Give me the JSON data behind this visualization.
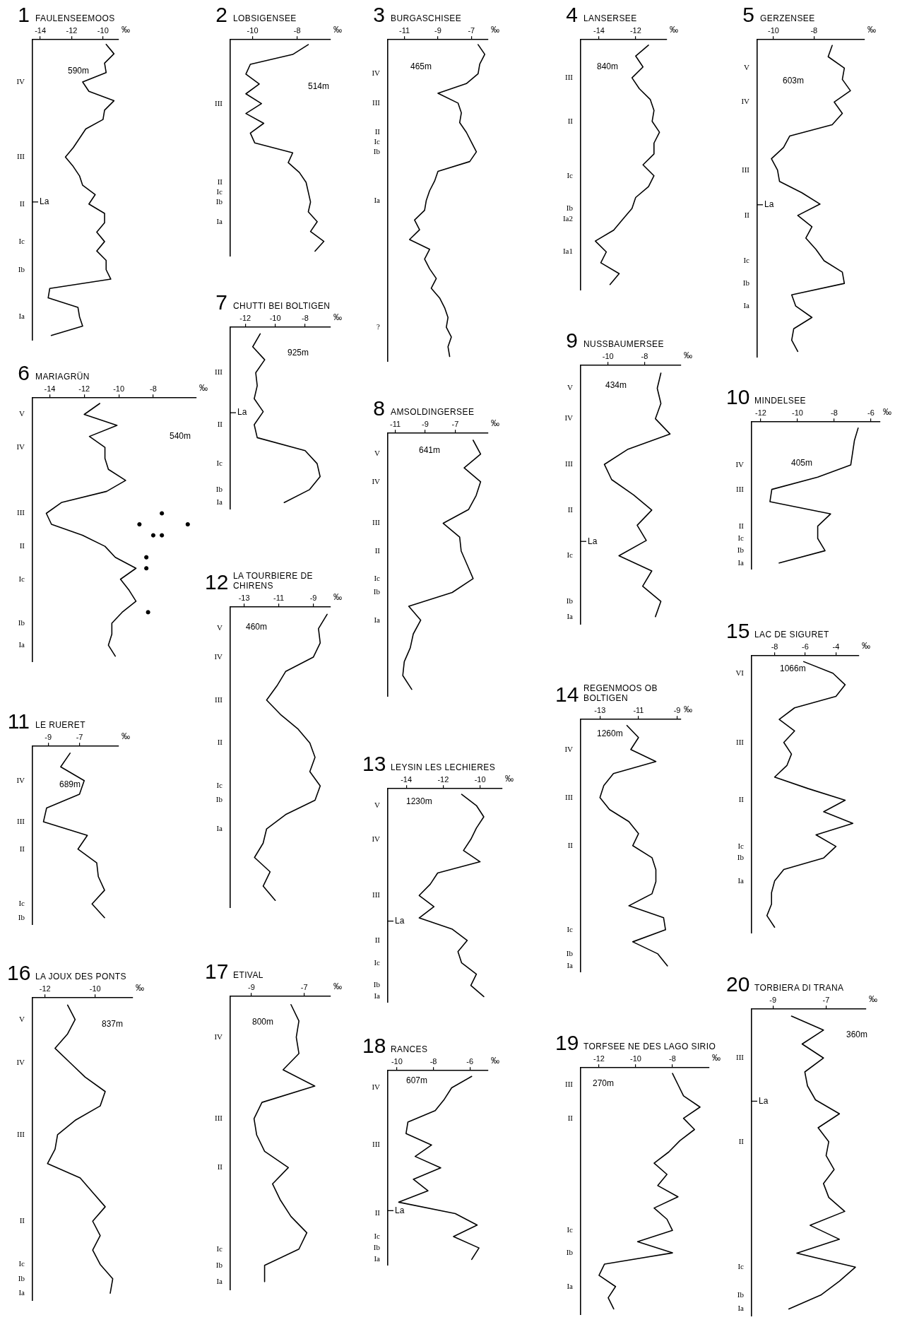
{
  "chart_data": [
    {
      "type": "line",
      "orientation": "horizontal",
      "title": "FAULENSEEMOOS",
      "xlabel": "‰",
      "xlim": [
        -14.5,
        -9
      ],
      "xticks": [
        -14,
        -12,
        -10
      ],
      "annotations": [
        "1",
        "590m",
        "La"
      ],
      "categories": [
        null,
        null,
        null,
        null,
        "IV",
        null,
        null,
        null,
        null,
        null,
        null,
        null,
        "III",
        null,
        null,
        null,
        null,
        "II",
        null,
        null,
        null,
        "Ic",
        null,
        null,
        "Ib",
        null,
        null,
        null,
        null,
        "Ia",
        null,
        null
      ],
      "series": [
        {
          "color": "#000000",
          "values": [
            -9.8,
            -9.3,
            -9.9,
            -9.8,
            -11.3,
            -10.9,
            -9.3,
            -9.9,
            -10.0,
            -11.1,
            -11.5,
            -11.9,
            -12.4,
            -11.9,
            -11.5,
            -11.3,
            -10.5,
            -10.9,
            -9.9,
            -9.9,
            -10.4,
            -9.9,
            -10.4,
            -9.8,
            -9.8,
            -9.5,
            -13.4,
            -13.5,
            -11.6,
            -11.5,
            -11.3,
            -13.3
          ]
        }
      ]
    },
    {
      "type": "line",
      "orientation": "horizontal",
      "title": "LOBSIGENSEE",
      "xlabel": "‰",
      "xlim": [
        -11,
        -6.5
      ],
      "xticks": [
        -10,
        -8
      ],
      "annotations": [
        "2",
        "514m"
      ],
      "categories": [
        null,
        null,
        null,
        null,
        null,
        null,
        "III",
        null,
        null,
        null,
        null,
        null,
        null,
        null,
        "II",
        "Ic",
        "Ib",
        null,
        "Ia",
        null,
        null,
        null
      ],
      "series": [
        {
          "color": "#000000",
          "values": [
            -7.5,
            -8.2,
            -10.1,
            -10.3,
            -9.7,
            -10.3,
            -9.6,
            -10.3,
            -9.5,
            -10.1,
            -9.9,
            -8.2,
            -8.4,
            -7.9,
            -7.6,
            -7.5,
            -7.4,
            -7.5,
            -7.1,
            -7.4,
            -6.8,
            -7.2
          ]
        }
      ]
    },
    {
      "type": "line",
      "orientation": "horizontal",
      "title": "BURGASCHISEE",
      "xlabel": "‰",
      "xlim": [
        -12,
        -6
      ],
      "xticks": [
        -11,
        -9,
        -7
      ],
      "annotations": [
        "3",
        "465m"
      ],
      "categories": [
        null,
        null,
        null,
        "IV",
        null,
        null,
        "III",
        null,
        null,
        "II",
        "Ic",
        "Ib",
        null,
        null,
        null,
        null,
        "Ia",
        null,
        null,
        null,
        null,
        null,
        null,
        null,
        null,
        null,
        null,
        null,
        null,
        "?",
        null,
        null,
        null
      ],
      "series": [
        {
          "color": "#000000",
          "values": [
            -6.6,
            -6.2,
            -6.5,
            -6.6,
            -7.3,
            -9.0,
            -7.8,
            -7.6,
            -7.7,
            -7.3,
            -7.0,
            -6.7,
            -7.1,
            -9.0,
            -9.2,
            -9.5,
            -9.7,
            -9.8,
            -10.4,
            -10.1,
            -10.7,
            -9.5,
            -9.8,
            -9.5,
            -9.1,
            -9.4,
            -8.9,
            -8.6,
            -8.4,
            -8.5,
            -8.2,
            -8.4,
            -8.3
          ]
        }
      ]
    },
    {
      "type": "line",
      "orientation": "horizontal",
      "title": "LANSERSEE",
      "xlabel": "‰",
      "xlim": [
        -15,
        -10.3
      ],
      "xticks": [
        -14,
        -12
      ],
      "annotations": [
        "4",
        "840m"
      ],
      "categories": [
        null,
        null,
        null,
        "III",
        null,
        null,
        null,
        "II",
        null,
        null,
        null,
        null,
        "Ic",
        null,
        null,
        "Ib",
        "Ia2",
        null,
        null,
        "Ia1",
        null,
        null,
        null
      ],
      "series": [
        {
          "color": "#000000",
          "values": [
            -11.3,
            -12.0,
            -11.6,
            -12.2,
            -11.8,
            -11.2,
            -11.0,
            -11.1,
            -10.7,
            -11.0,
            -11.0,
            -11.6,
            -11.0,
            -11.3,
            -12.0,
            -12.2,
            -12.7,
            -13.2,
            -14.2,
            -13.6,
            -13.9,
            -12.9,
            -13.4
          ]
        }
      ]
    },
    {
      "type": "line",
      "orientation": "horizontal",
      "title": "GERZENSEE",
      "xlabel": "‰",
      "xlim": [
        -10.8,
        -5.5
      ],
      "xticks": [
        -10,
        -8
      ],
      "annotations": [
        "5",
        "603m",
        "La"
      ],
      "categories": [
        null,
        null,
        "V",
        null,
        null,
        "IV",
        null,
        null,
        null,
        null,
        null,
        "III",
        null,
        null,
        null,
        "II",
        null,
        null,
        null,
        "Ic",
        null,
        "Ib",
        null,
        "Ia",
        null,
        null,
        null,
        null
      ],
      "series": [
        {
          "color": "#000000",
          "values": [
            -7.1,
            -7.3,
            -6.5,
            -6.6,
            -6.2,
            -7.0,
            -6.6,
            -7.1,
            -9.2,
            -9.5,
            -10.1,
            -9.8,
            -9.7,
            -8.6,
            -7.7,
            -8.8,
            -8.1,
            -8.4,
            -7.9,
            -7.5,
            -6.6,
            -6.5,
            -9.1,
            -8.9,
            -8.1,
            -9.0,
            -9.1,
            -8.8
          ]
        }
      ]
    },
    {
      "type": "line",
      "orientation": "horizontal",
      "title": "MARIAGRÜN",
      "xlabel": "‰",
      "xlim": [
        -15,
        -5.5
      ],
      "xticks": [
        -14,
        -12,
        -10,
        -8
      ],
      "annotations": [
        "6",
        "540m"
      ],
      "categories": [
        null,
        "V",
        null,
        null,
        "IV",
        null,
        null,
        null,
        null,
        null,
        "III",
        null,
        null,
        "II",
        null,
        null,
        "Ic",
        null,
        null,
        null,
        "Ib",
        null,
        "Ia",
        null
      ],
      "series": [
        {
          "color": "#000000",
          "values": [
            -11.1,
            -12.0,
            -10.1,
            -11.7,
            -10.8,
            -10.8,
            -10.6,
            -9.6,
            -10.7,
            -13.3,
            -14.2,
            -13.9,
            -12.1,
            -10.8,
            -10.2,
            -9.0,
            -9.9,
            -9.4,
            -9.0,
            -9.8,
            -10.4,
            -10.4,
            -10.6,
            -10.2
          ]
        },
        {
          "type": "scatter",
          "color": "#000000",
          "values": [
            null,
            null,
            null,
            null,
            null,
            null,
            null,
            null,
            null,
            null,
            -7.5,
            -8.8,
            -8.0,
            null,
            null,
            -8.4,
            null,
            null,
            null,
            -8.3,
            null,
            null,
            null,
            null
          ]
        },
        {
          "type": "scatter",
          "color": "#000000",
          "values": [
            null,
            null,
            null,
            null,
            null,
            null,
            null,
            null,
            null,
            null,
            null,
            -6.0,
            -7.5,
            null,
            -8.4,
            null,
            null,
            null,
            null,
            null,
            null,
            null,
            null,
            null
          ]
        }
      ]
    },
    {
      "type": "line",
      "orientation": "horizontal",
      "title": "CHUTTI BEI BOLTIGEN",
      "xlabel": "‰",
      "xlim": [
        -13,
        -6.3
      ],
      "xticks": [
        -12,
        -10,
        -8
      ],
      "annotations": [
        "7",
        "925m",
        "La"
      ],
      "categories": [
        null,
        null,
        null,
        "III",
        null,
        null,
        null,
        "II",
        null,
        null,
        "Ic",
        null,
        "Ib",
        "Ia"
      ],
      "series": [
        {
          "color": "#000000",
          "values": [
            -11.0,
            -11.5,
            -10.7,
            -11.3,
            -11.2,
            -11.4,
            -10.8,
            -11.4,
            -11.2,
            -8.0,
            -7.2,
            -7.0,
            -7.7,
            -9.4
          ]
        }
      ]
    },
    {
      "type": "line",
      "orientation": "horizontal",
      "title": "AMSOLDINGERSEE",
      "xlabel": "‰",
      "xlim": [
        -11.5,
        -4.8
      ],
      "xticks": [
        -11,
        -9,
        -7
      ],
      "annotations": [
        "8",
        "641m"
      ],
      "categories": [
        null,
        "V",
        null,
        "IV",
        null,
        null,
        "III",
        null,
        "II",
        null,
        "Ic",
        "Ib",
        null,
        "Ia",
        null,
        null,
        null,
        null,
        null
      ],
      "series": [
        {
          "color": "#000000",
          "values": [
            -5.8,
            -5.3,
            -6.4,
            -5.3,
            -5.6,
            -6.1,
            -7.8,
            -6.7,
            -6.6,
            -6.2,
            -5.8,
            -7.2,
            -10.1,
            -9.3,
            -9.8,
            -10.0,
            -10.4,
            -10.5,
            -9.9
          ]
        }
      ]
    },
    {
      "type": "line",
      "orientation": "horizontal",
      "title": "NUSSBAUMERSEE",
      "xlabel": "‰",
      "xlim": [
        -11.5,
        -6
      ],
      "xticks": [
        -10,
        -8
      ],
      "annotations": [
        "9",
        "434m",
        "La"
      ],
      "categories": [
        null,
        "V",
        null,
        "IV",
        null,
        null,
        "III",
        null,
        null,
        "II",
        null,
        null,
        "Ic",
        null,
        null,
        "Ib",
        "Ia"
      ],
      "series": [
        {
          "color": "#000000",
          "values": [
            -7.1,
            -7.3,
            -7.1,
            -7.4,
            -6.6,
            -8.9,
            -10.2,
            -9.8,
            -8.6,
            -7.6,
            -8.4,
            -7.9,
            -9.4,
            -7.6,
            -8.1,
            -7.1,
            -7.4
          ]
        }
      ]
    },
    {
      "type": "line",
      "orientation": "horizontal",
      "title": "MINDELSEE",
      "xlabel": "‰",
      "xlim": [
        -12.5,
        -5.5
      ],
      "xticks": [
        -12,
        -10,
        -8,
        -6
      ],
      "annotations": [
        "10",
        "405m"
      ],
      "categories": [
        null,
        null,
        null,
        "IV",
        null,
        "III",
        null,
        null,
        "II",
        "Ic",
        "Ib",
        "Ia"
      ],
      "series": [
        {
          "color": "#000000",
          "values": [
            -6.7,
            -6.9,
            -7.0,
            -7.1,
            -8.9,
            -11.4,
            -11.5,
            -8.2,
            -8.9,
            -8.9,
            -8.5,
            -11.0
          ]
        }
      ]
    },
    {
      "type": "line",
      "orientation": "horizontal",
      "title": "LE RUERET",
      "xlabel": "‰",
      "xlim": [
        -10,
        -4.5
      ],
      "xticks": [
        -9,
        -7
      ],
      "annotations": [
        "11",
        "689m"
      ],
      "categories": [
        null,
        null,
        "IV",
        null,
        null,
        "III",
        null,
        "II",
        null,
        null,
        null,
        "Ic",
        "Ib"
      ],
      "series": [
        {
          "color": "#000000",
          "values": [
            -7.6,
            -8.2,
            -6.7,
            -7.0,
            -9.1,
            -9.3,
            -6.5,
            -7.1,
            -5.9,
            -5.8,
            -5.4,
            -6.2,
            -5.4
          ]
        }
      ]
    },
    {
      "type": "line",
      "orientation": "horizontal",
      "title": "LA TOURBIERE DE CHIRENS",
      "xlabel": "‰",
      "xlim": [
        -13.8,
        -8
      ],
      "xticks": [
        -13,
        -11,
        -9
      ],
      "annotations": [
        "12",
        "460m"
      ],
      "categories": [
        null,
        "V",
        null,
        "IV",
        null,
        null,
        "III",
        null,
        null,
        "II",
        null,
        null,
        "Ic",
        "Ib",
        null,
        "Ia",
        null,
        null,
        null,
        null,
        null
      ],
      "series": [
        {
          "color": "#000000",
          "values": [
            -8.2,
            -8.7,
            -8.6,
            -9.0,
            -10.6,
            -11.1,
            -11.7,
            -10.9,
            -9.9,
            -9.2,
            -8.9,
            -9.2,
            -8.6,
            -8.9,
            -10.6,
            -11.7,
            -11.9,
            -12.4,
            -11.5,
            -11.9,
            -11.2
          ]
        }
      ]
    },
    {
      "type": "line",
      "orientation": "horizontal",
      "title": "LEYSIN LES LECHIERES",
      "xlabel": "‰",
      "xlim": [
        -15,
        -8.8
      ],
      "xticks": [
        -14,
        -12,
        -10
      ],
      "annotations": [
        "13",
        "1230m",
        "La"
      ],
      "categories": [
        null,
        "V",
        null,
        null,
        "IV",
        null,
        null,
        null,
        null,
        "III",
        null,
        null,
        null,
        "II",
        null,
        "Ic",
        null,
        "Ib",
        "Ia"
      ],
      "series": [
        {
          "color": "#000000",
          "values": [
            -11.0,
            -10.2,
            -9.8,
            -10.2,
            -10.5,
            -10.9,
            -10.0,
            -12.3,
            -12.7,
            -13.3,
            -12.5,
            -13.3,
            -11.5,
            -10.7,
            -11.2,
            -11.0,
            -10.2,
            -10.5,
            -9.8
          ]
        }
      ]
    },
    {
      "type": "line",
      "orientation": "horizontal",
      "title": "REGENMOOS OB BOLTIGEN",
      "xlabel": "‰",
      "xlim": [
        -14,
        -8.8
      ],
      "xticks": [
        -13,
        -11,
        -9
      ],
      "annotations": [
        "14",
        "1260m"
      ],
      "categories": [
        null,
        null,
        "IV",
        null,
        null,
        null,
        "III",
        null,
        null,
        null,
        "II",
        null,
        null,
        null,
        null,
        null,
        null,
        "Ic",
        null,
        "Ib",
        "Ia"
      ],
      "series": [
        {
          "color": "#000000",
          "values": [
            -11.6,
            -11.0,
            -11.4,
            -10.1,
            -12.3,
            -12.8,
            -13.0,
            -12.5,
            -11.5,
            -11.0,
            -11.3,
            -10.3,
            -10.1,
            -10.1,
            -10.3,
            -11.5,
            -9.7,
            -9.6,
            -11.3,
            -10.0,
            -9.5
          ]
        }
      ]
    },
    {
      "type": "line",
      "orientation": "horizontal",
      "title": "LAC DE SIGURET",
      "xlabel": "‰",
      "xlim": [
        -9.5,
        -2.5
      ],
      "xticks": [
        -8,
        -6,
        -4
      ],
      "annotations": [
        "15",
        "1066m"
      ],
      "categories": [
        null,
        "VI",
        null,
        null,
        null,
        null,
        null,
        "III",
        null,
        null,
        null,
        null,
        "II",
        null,
        null,
        null,
        "Ic",
        "Ib",
        null,
        "Ia",
        null,
        null,
        null,
        null
      ],
      "series": [
        {
          "color": "#000000",
          "values": [
            -6.1,
            -4.2,
            -3.4,
            -4.0,
            -6.7,
            -7.7,
            -6.7,
            -7.4,
            -6.9,
            -7.2,
            -8.0,
            -5.8,
            -3.4,
            -4.8,
            -2.9,
            -5.3,
            -4.0,
            -4.8,
            -7.4,
            -8.0,
            -8.2,
            -8.2,
            -8.5,
            -8.0
          ]
        }
      ]
    },
    {
      "type": "line",
      "orientation": "horizontal",
      "title": "LA JOUX DES PONTS",
      "xlabel": "‰",
      "xlim": [
        -12.5,
        -8.5
      ],
      "xticks": [
        -12,
        -10
      ],
      "annotations": [
        "16",
        "837m"
      ],
      "categories": [
        null,
        "V",
        null,
        null,
        "IV",
        null,
        null,
        null,
        null,
        "III",
        null,
        null,
        null,
        null,
        null,
        "II",
        null,
        null,
        "Ic",
        "Ib",
        "Ia"
      ],
      "series": [
        {
          "color": "#000000",
          "values": [
            -11.1,
            -10.8,
            -11.1,
            -11.6,
            -11.0,
            -10.4,
            -9.6,
            -9.8,
            -10.8,
            -11.5,
            -11.6,
            -11.9,
            -10.6,
            -10.1,
            -9.6,
            -10.1,
            -9.8,
            -10.1,
            -9.8,
            -9.3,
            -9.4
          ]
        }
      ]
    },
    {
      "type": "line",
      "orientation": "horizontal",
      "title": "ETIVAL",
      "xlabel": "‰",
      "xlim": [
        -9.8,
        -6
      ],
      "xticks": [
        -9,
        -7
      ],
      "annotations": [
        "17",
        "800m"
      ],
      "categories": [
        null,
        null,
        "IV",
        null,
        null,
        null,
        null,
        "III",
        null,
        null,
        "II",
        null,
        null,
        null,
        null,
        "Ic",
        "Ib",
        "Ia"
      ],
      "series": [
        {
          "color": "#000000",
          "values": [
            -7.5,
            -7.2,
            -7.3,
            -7.2,
            -7.8,
            -6.6,
            -8.6,
            -8.9,
            -8.8,
            -8.5,
            -7.6,
            -8.2,
            -7.9,
            -7.5,
            -6.9,
            -7.2,
            -8.5,
            -8.5
          ]
        }
      ]
    },
    {
      "type": "line",
      "orientation": "horizontal",
      "title": "RANCES",
      "xlabel": "‰",
      "xlim": [
        -10.5,
        -5
      ],
      "xticks": [
        -10,
        -8,
        -6
      ],
      "annotations": [
        "18",
        "607m",
        "La"
      ],
      "categories": [
        null,
        "IV",
        null,
        null,
        null,
        null,
        "III",
        null,
        null,
        null,
        null,
        null,
        "II",
        null,
        "Ic",
        "Ib",
        "Ia"
      ],
      "series": [
        {
          "color": "#000000",
          "values": [
            -5.9,
            -7.0,
            -7.4,
            -7.9,
            -9.4,
            -9.5,
            -8.1,
            -9.0,
            -7.6,
            -9.1,
            -8.3,
            -9.9,
            -6.8,
            -5.6,
            -6.9,
            -5.5,
            -5.9
          ]
        }
      ]
    },
    {
      "type": "line",
      "orientation": "horizontal",
      "title": "TORFSEE NE DES LAGO SIRIO",
      "xlabel": "‰",
      "xlim": [
        -13,
        -6
      ],
      "xticks": [
        -12,
        -10,
        -8
      ],
      "annotations": [
        "19",
        "270m"
      ],
      "categories": [
        null,
        "III",
        null,
        null,
        "II",
        null,
        null,
        null,
        null,
        null,
        null,
        null,
        null,
        null,
        "Ic",
        null,
        "Ib",
        null,
        null,
        "Ia",
        null,
        null
      ],
      "series": [
        {
          "color": "#000000",
          "values": [
            -8.0,
            -7.7,
            -7.4,
            -6.5,
            -7.4,
            -6.8,
            -7.6,
            -8.2,
            -9.0,
            -8.3,
            -8.8,
            -7.7,
            -9.0,
            -8.3,
            -8.0,
            -9.9,
            -8.0,
            -11.7,
            -12.0,
            -11.1,
            -11.5,
            -11.2
          ]
        }
      ]
    },
    {
      "type": "line",
      "orientation": "horizontal",
      "title": "TORBIERA DI TRANA",
      "xlabel": "‰",
      "xlim": [
        -9.8,
        -5.5
      ],
      "xticks": [
        -9,
        -7
      ],
      "annotations": [
        "20",
        "360m",
        "La"
      ],
      "categories": [
        null,
        null,
        null,
        "III",
        null,
        null,
        null,
        null,
        null,
        "II",
        null,
        null,
        null,
        null,
        null,
        null,
        null,
        null,
        "Ic",
        null,
        "Ib",
        "Ia"
      ],
      "series": [
        {
          "color": "#000000",
          "values": [
            -8.3,
            -7.1,
            -7.9,
            -7.1,
            -7.8,
            -7.7,
            -7.4,
            -6.5,
            -7.3,
            -6.9,
            -7.0,
            -6.7,
            -7.1,
            -6.9,
            -6.3,
            -7.6,
            -6.5,
            -8.1,
            -5.9,
            -6.5,
            -7.2,
            -8.4
          ]
        }
      ]
    }
  ]
}
